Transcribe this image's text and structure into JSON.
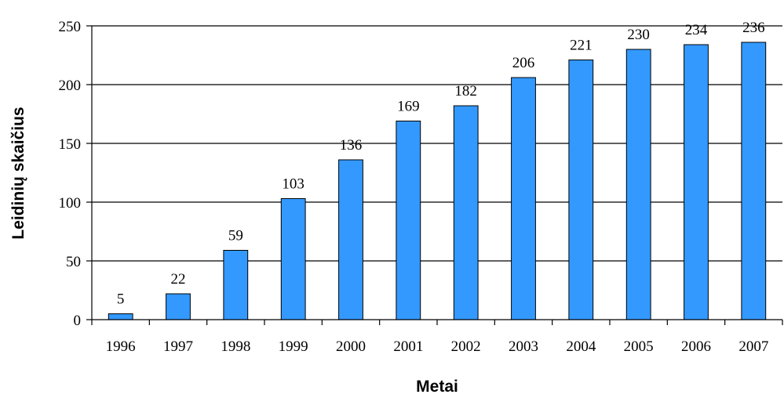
{
  "chart_data": {
    "type": "bar",
    "categories": [
      "1996",
      "1997",
      "1998",
      "1999",
      "2000",
      "2001",
      "2002",
      "2003",
      "2004",
      "2005",
      "2006",
      "2007"
    ],
    "values": [
      5,
      22,
      59,
      103,
      136,
      169,
      182,
      206,
      221,
      230,
      234,
      236
    ],
    "xlabel": "Metai",
    "ylabel": "Leidinių skaičius",
    "ylim": [
      0,
      250
    ],
    "yticks": [
      0,
      50,
      100,
      150,
      200,
      250
    ],
    "grid": true,
    "legend": "none",
    "colors": {
      "bar": "#3399FF",
      "bar_stroke": "#000000",
      "grid": "#000000"
    }
  }
}
